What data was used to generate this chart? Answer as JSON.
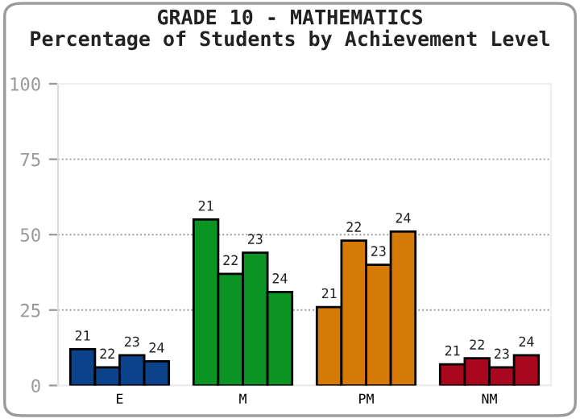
{
  "chart_data": {
    "type": "bar",
    "title": "GRADE 10 - MATHEMATICS",
    "subtitle": "Percentage of Students by Achievement Level",
    "categories": [
      "E",
      "M",
      "PM",
      "NM"
    ],
    "series": [
      {
        "name": "21",
        "colors": [
          "#0b428a",
          "#0b9424",
          "#d67a06",
          "#a8071e"
        ],
        "values": [
          12,
          55,
          26,
          7
        ]
      },
      {
        "name": "22",
        "colors": [
          "#0b428a",
          "#0b9424",
          "#d67a06",
          "#a8071e"
        ],
        "values": [
          6,
          37,
          48,
          9
        ]
      },
      {
        "name": "23",
        "colors": [
          "#0b428a",
          "#0b9424",
          "#d67a06",
          "#a8071e"
        ],
        "values": [
          10,
          44,
          40,
          6
        ]
      },
      {
        "name": "24",
        "colors": [
          "#0b428a",
          "#0b9424",
          "#d67a06",
          "#a8071e"
        ],
        "values": [
          8,
          31,
          51,
          10
        ]
      }
    ],
    "ylim": [
      0,
      100
    ],
    "yticks": [
      0,
      25,
      50,
      75,
      100
    ],
    "grid": "y",
    "legend": false
  }
}
